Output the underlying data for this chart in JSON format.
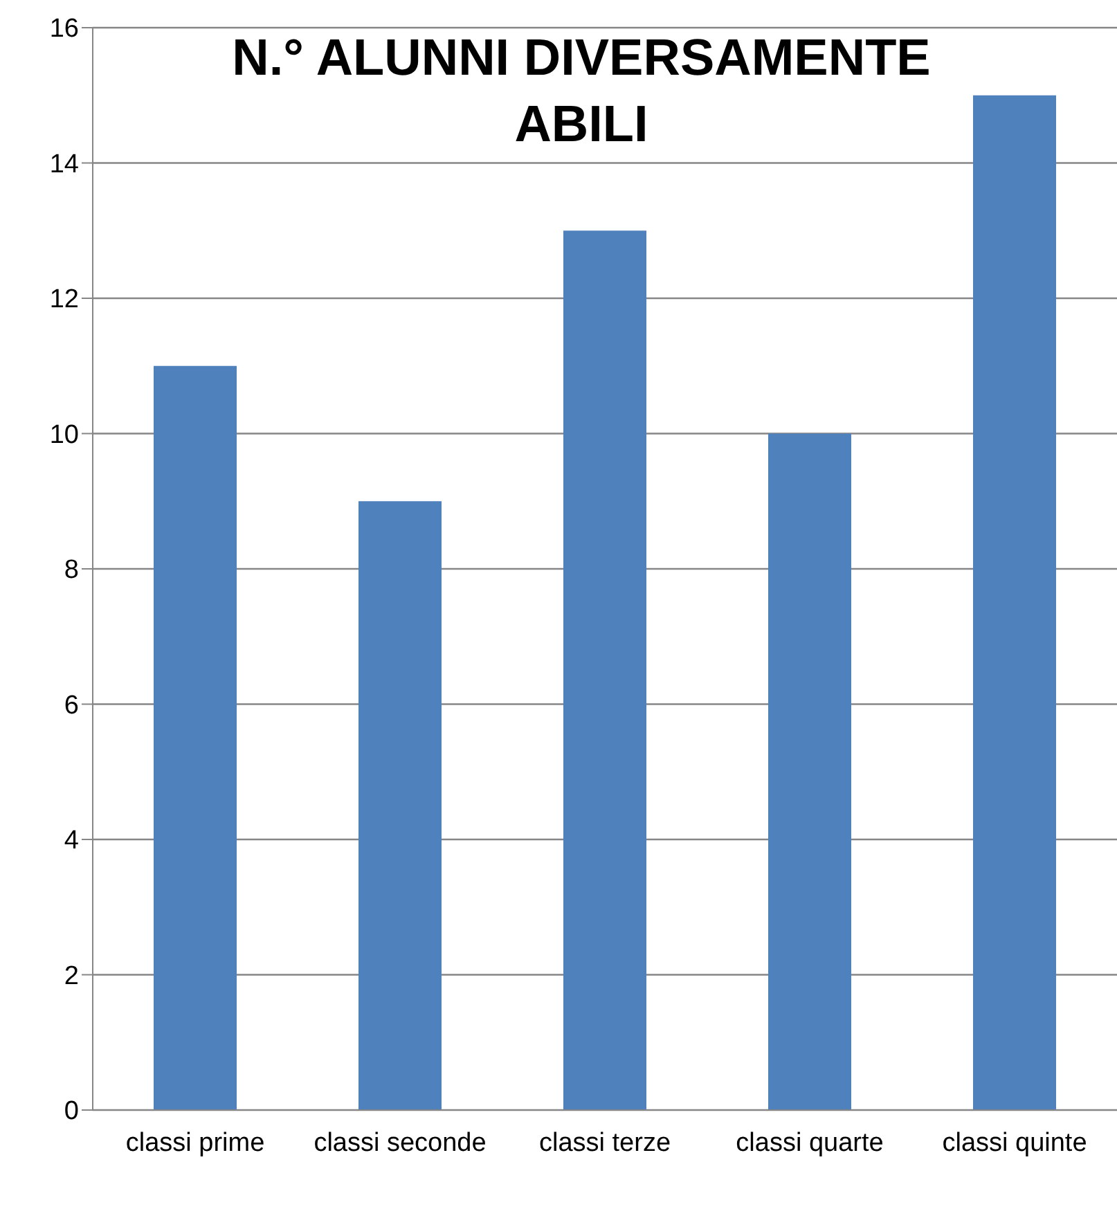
{
  "chart_data": {
    "type": "bar",
    "title": "N.° ALUNNI DIVERSAMENTE ABILI",
    "categories": [
      "classi prime",
      "classi seconde",
      "classi terze",
      "classi quarte",
      "classi quinte"
    ],
    "values": [
      11,
      9,
      13,
      10,
      15
    ],
    "color": "#4f81bd",
    "ylim": [
      0,
      16
    ],
    "yticks": [
      0,
      2,
      4,
      6,
      8,
      10,
      12,
      14,
      16
    ],
    "grid": "y"
  }
}
